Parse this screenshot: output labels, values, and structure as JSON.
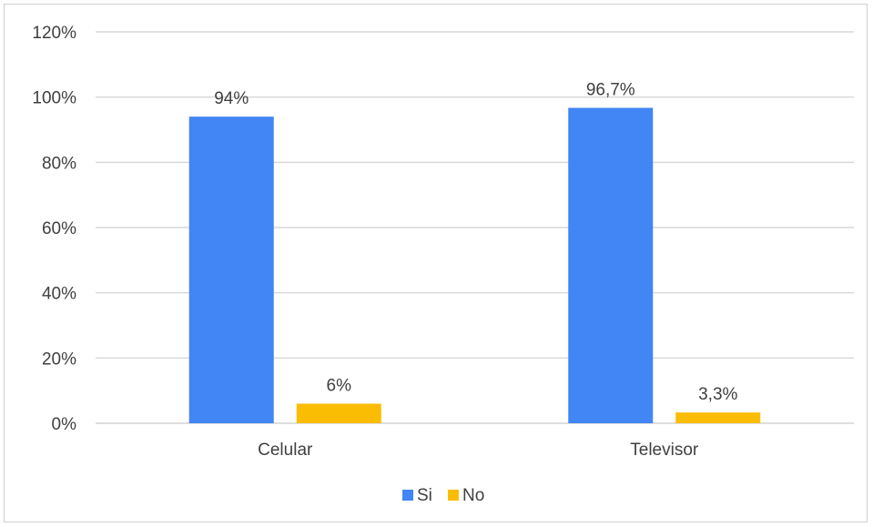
{
  "chart_data": {
    "type": "bar",
    "categories": [
      "Celular",
      "Televisor"
    ],
    "series": [
      {
        "name": "Si",
        "values": [
          94,
          96.7
        ],
        "labels": [
          "94%",
          "96,7%"
        ],
        "color": "#4285F4"
      },
      {
        "name": "No",
        "values": [
          6,
          3.3
        ],
        "labels": [
          "6%",
          "3,3%"
        ],
        "color": "#FBBC04"
      }
    ],
    "ylim": [
      0,
      120
    ],
    "yticks": [
      0,
      20,
      40,
      60,
      80,
      100,
      120
    ],
    "ytick_labels": [
      "0%",
      "20%",
      "40%",
      "60%",
      "80%",
      "100%",
      "120%"
    ],
    "grid": true,
    "legend_position": "bottom",
    "title": "",
    "xlabel": "",
    "ylabel": ""
  }
}
